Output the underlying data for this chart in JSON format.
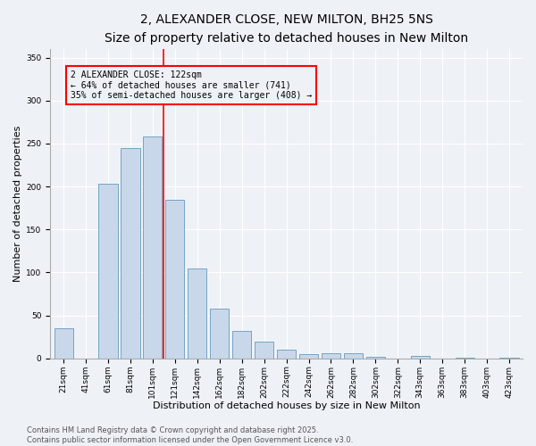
{
  "title1": "2, ALEXANDER CLOSE, NEW MILTON, BH25 5NS",
  "title2": "Size of property relative to detached houses in New Milton",
  "xlabel": "Distribution of detached houses by size in New Milton",
  "ylabel": "Number of detached properties",
  "bar_labels": [
    "21sqm",
    "41sqm",
    "61sqm",
    "81sqm",
    "101sqm",
    "121sqm",
    "142sqm",
    "162sqm",
    "182sqm",
    "202sqm",
    "222sqm",
    "242sqm",
    "262sqm",
    "282sqm",
    "302sqm",
    "322sqm",
    "343sqm",
    "363sqm",
    "383sqm",
    "403sqm",
    "423sqm"
  ],
  "bar_values": [
    35,
    0,
    203,
    245,
    258,
    185,
    105,
    58,
    32,
    20,
    10,
    5,
    6,
    6,
    2,
    0,
    3,
    0,
    1,
    0,
    1
  ],
  "bar_color": "#c8d8ea",
  "bar_edgecolor": "#6699bb",
  "vline_color": "red",
  "vline_x_index": 5,
  "ylim": [
    0,
    360
  ],
  "yticks": [
    0,
    50,
    100,
    150,
    200,
    250,
    300,
    350
  ],
  "annotation_text_line1": "2 ALEXANDER CLOSE: 122sqm",
  "annotation_text_line2": "← 64% of detached houses are smaller (741)",
  "annotation_text_line3": "35% of semi-detached houses are larger (408) →",
  "annotation_box_edgecolor": "red",
  "footer1": "Contains HM Land Registry data © Crown copyright and database right 2025.",
  "footer2": "Contains public sector information licensed under the Open Government Licence v3.0.",
  "bg_color": "#eef2f7",
  "title1_fontsize": 10,
  "title2_fontsize": 9,
  "xlabel_fontsize": 8,
  "ylabel_fontsize": 8,
  "tick_fontsize": 6.5,
  "annotation_fontsize": 7,
  "footer_fontsize": 6
}
